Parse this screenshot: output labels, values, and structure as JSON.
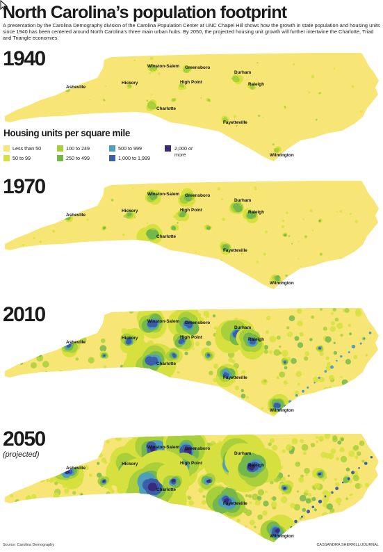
{
  "title": "North Carolina’s population footprint",
  "subtitle": "A presentation by the Carolina Demography division of the Carolina Population Center at UNC Chapel Hill shows how the growth in state population and housing units since 1940 has been centered around North Carolina’s three main urban hubs. By 2050, the projected housing unit growth will further intertwine the Charlotte, Triad and Triangle economies.",
  "legend": {
    "title": "Housing units per square mile",
    "items": [
      {
        "label": "Less than 50",
        "color": "#f7e675"
      },
      {
        "label": "50 to 99",
        "color": "#d6e13f"
      },
      {
        "label": "100 to 249",
        "color": "#a9cf3a"
      },
      {
        "label": "250 to 499",
        "color": "#74b84b"
      },
      {
        "label": "500 to 999",
        "color": "#4f9fbb"
      },
      {
        "label": "1,000 to 1,999",
        "color": "#3a5ea8"
      },
      {
        "label": "2,000 or more",
        "color": "#3b2a7c"
      }
    ]
  },
  "maps": [
    {
      "year": "1940",
      "note": "",
      "level": 0
    },
    {
      "year": "1970",
      "note": "",
      "level": 1
    },
    {
      "year": "2010",
      "note": "",
      "level": 2
    },
    {
      "year": "2050",
      "note": "(projected)",
      "level": 3
    }
  ],
  "cities": [
    "Winston-Salem",
    "Greensboro",
    "Durham",
    "Hickory",
    "High Point",
    "Raleigh",
    "Asheville",
    "Charlotte",
    "Fayetteville",
    "Wilmington"
  ],
  "footer": {
    "source": "Source: Carolina Demography",
    "credit": "CASSANDRA SHERRILL/JOURNAL"
  }
}
